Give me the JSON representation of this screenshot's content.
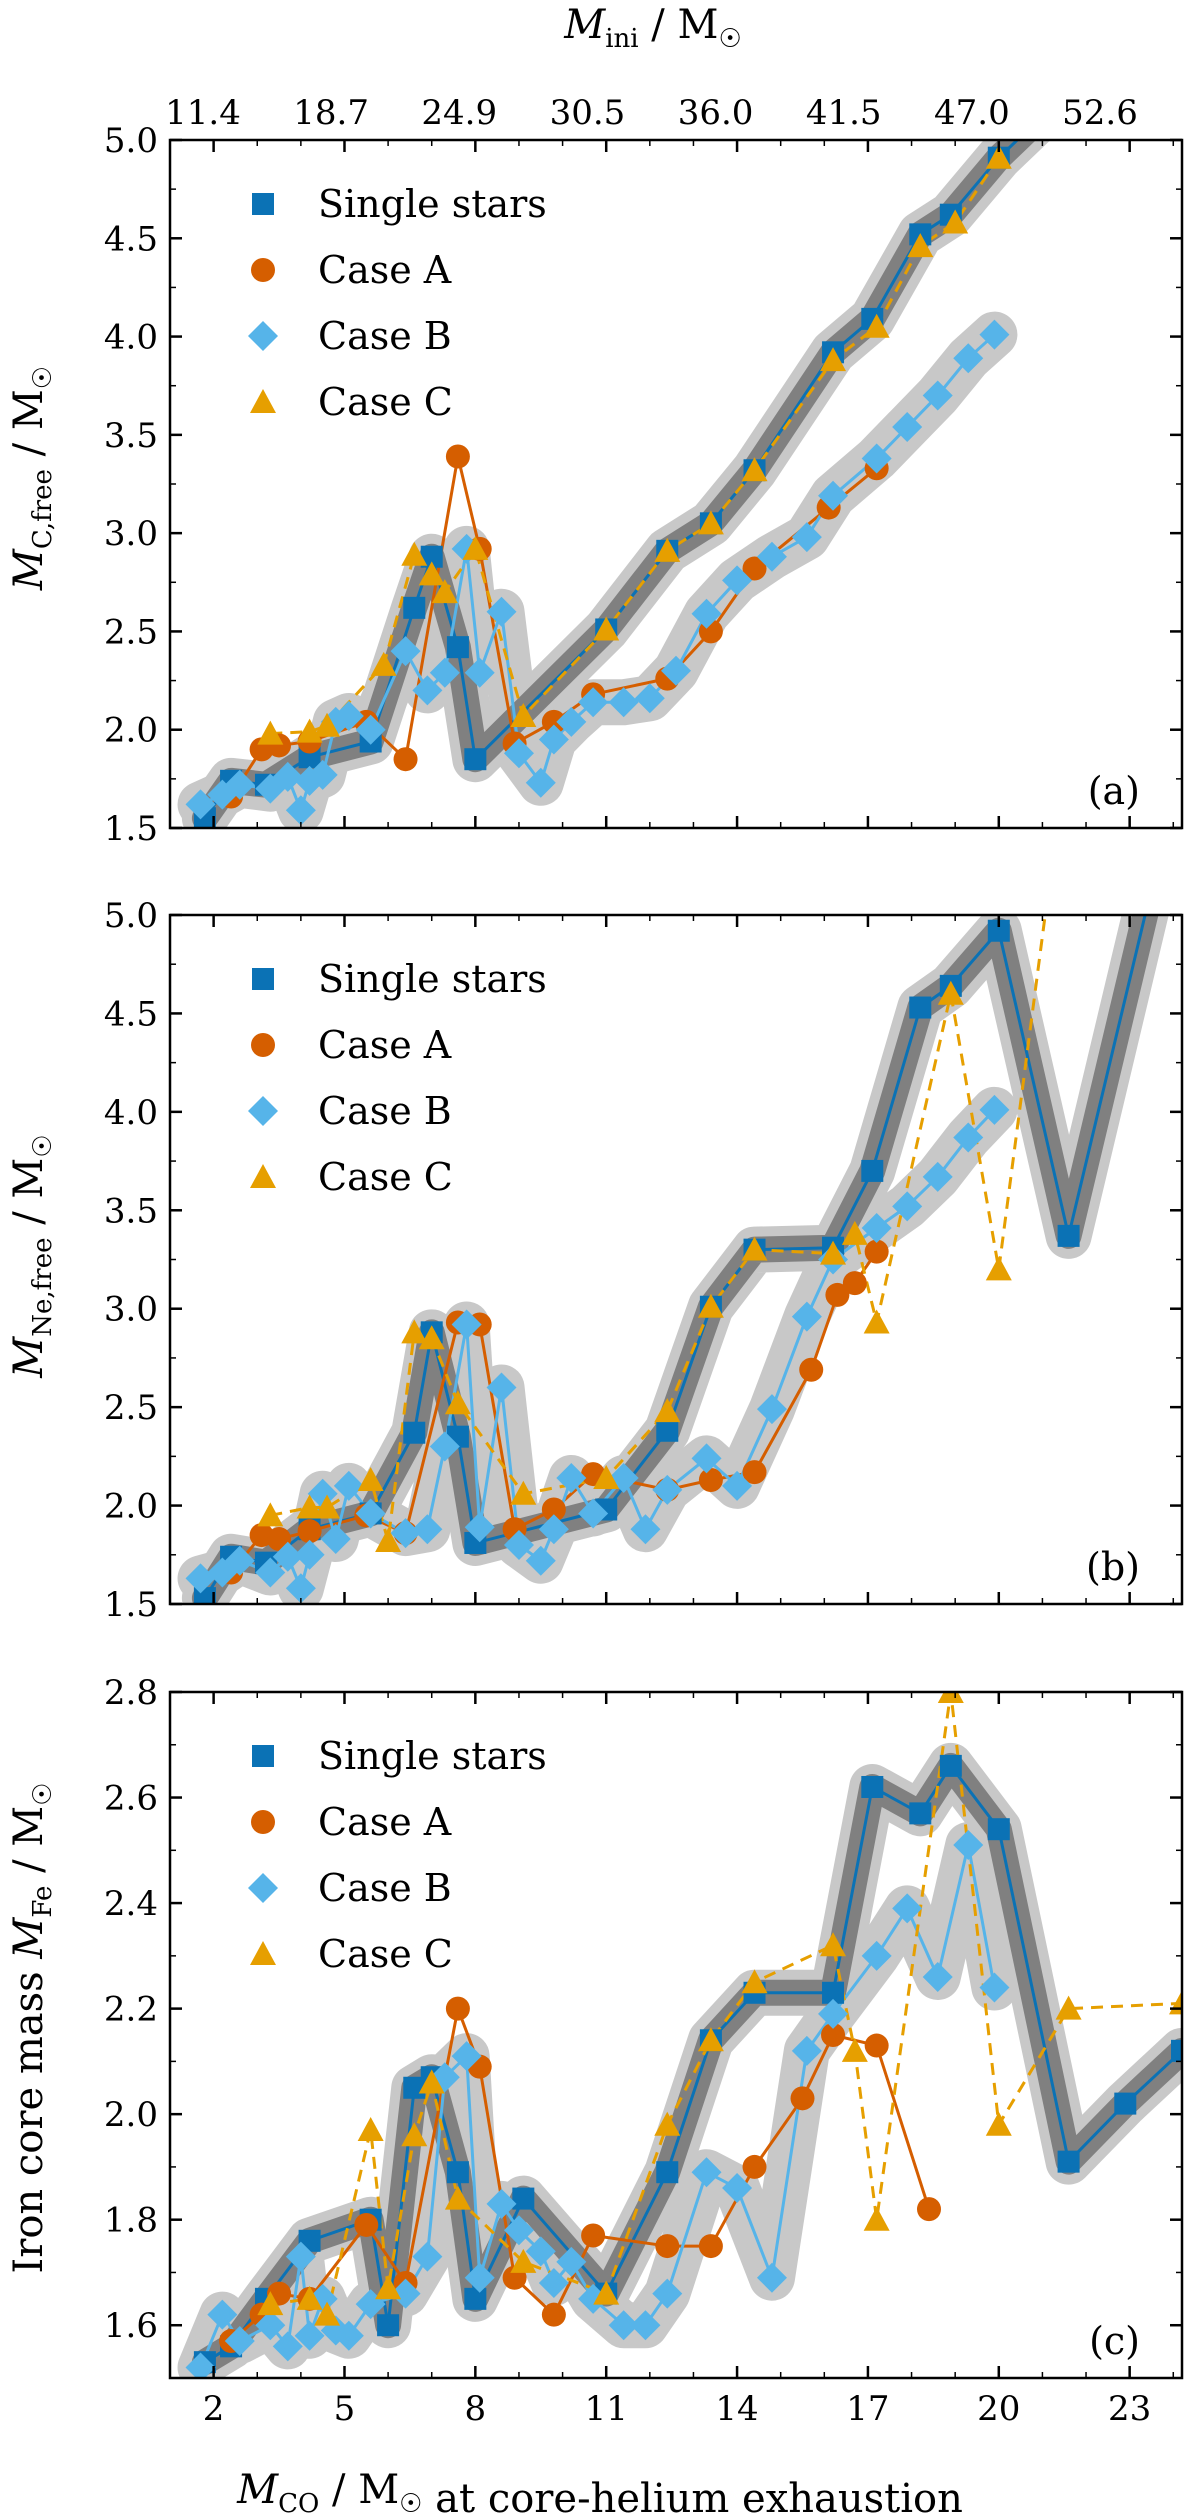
{
  "colors": {
    "single": "#0b72b5",
    "case_a": "#d55e00",
    "case_b": "#56b4e9",
    "case_c": "#e69f00",
    "band_light": "#c8c8c8",
    "band_dark": "#808080"
  },
  "legend_labels": [
    "Single stars",
    "Case A",
    "Case B",
    "Case C"
  ],
  "top_axis": {
    "label": "M_ini / M☉",
    "ticks": [
      "11.4",
      "18.7",
      "24.9",
      "30.5",
      "36.0",
      "41.5",
      "47.0",
      "52.6"
    ]
  },
  "bottom_axis_label": "M_CO / M☉ at core-helium exhaustion",
  "chart_data": [
    {
      "type": "line",
      "panel": "(a)",
      "ylabel": "M_C,free / M☉",
      "xlim": [
        1.0,
        24.2
      ],
      "ylim": [
        1.5,
        5.0
      ],
      "yticks": [
        "1.5",
        "2.0",
        "2.5",
        "3.0",
        "3.5",
        "4.0",
        "4.5",
        "5.0"
      ],
      "xticks": [
        "2",
        "5",
        "8",
        "11",
        "14",
        "17",
        "20",
        "23"
      ],
      "grid": false,
      "legend": "top-left",
      "series": [
        {
          "name": "Single stars",
          "marker": "square",
          "x": [
            1.8,
            2.4,
            3.2,
            4.2,
            5.6,
            6.6,
            7.0,
            7.6,
            8.0,
            11.0,
            12.4,
            13.4,
            14.4,
            16.2,
            17.1,
            18.2,
            18.9,
            20.0,
            21.6,
            24.0
          ],
          "y": [
            1.55,
            1.74,
            1.72,
            1.86,
            1.94,
            2.62,
            2.88,
            2.42,
            1.85,
            2.51,
            2.91,
            3.05,
            3.32,
            3.92,
            4.09,
            4.52,
            4.62,
            4.91,
            5.25,
            5.6
          ]
        },
        {
          "name": "Case A",
          "marker": "circle",
          "x": [
            2.4,
            3.1,
            3.5,
            4.2,
            5.5,
            6.4,
            7.6,
            8.1,
            8.9,
            9.8,
            10.7,
            12.4,
            13.4,
            14.4,
            16.1,
            17.2
          ],
          "y": [
            1.66,
            1.9,
            1.92,
            1.94,
            2.04,
            1.85,
            3.39,
            2.92,
            1.93,
            2.04,
            2.18,
            2.26,
            2.5,
            2.82,
            3.13,
            3.33
          ]
        },
        {
          "name": "Case B",
          "marker": "diamond",
          "x": [
            1.7,
            2.2,
            2.6,
            3.3,
            3.7,
            4.0,
            4.2,
            4.5,
            4.8,
            5.1,
            5.6,
            6.4,
            6.9,
            7.3,
            7.8,
            8.1,
            8.6,
            9.0,
            9.5,
            9.8,
            10.2,
            10.7,
            11.4,
            12.0,
            12.6,
            13.3,
            14.0,
            14.8,
            15.6,
            16.2,
            17.2,
            17.9,
            18.6,
            19.3,
            19.9
          ],
          "y": [
            1.62,
            1.67,
            1.72,
            1.7,
            1.76,
            1.59,
            1.74,
            1.77,
            2.04,
            2.07,
            2.0,
            2.4,
            2.2,
            2.29,
            2.92,
            2.29,
            2.6,
            1.88,
            1.73,
            1.95,
            2.04,
            2.14,
            2.14,
            2.16,
            2.3,
            2.59,
            2.76,
            2.88,
            2.98,
            3.19,
            3.38,
            3.54,
            3.7,
            3.89,
            4.01
          ]
        },
        {
          "name": "Case C",
          "marker": "triangle",
          "x": [
            3.3,
            4.2,
            4.6,
            5.9,
            6.6,
            7.0,
            7.3,
            8.0,
            9.1,
            11.0,
            12.4,
            13.4,
            14.4,
            16.2,
            17.2,
            18.2,
            19.0,
            20.0
          ],
          "y": [
            1.98,
            1.99,
            2.02,
            2.33,
            2.89,
            2.79,
            2.7,
            2.92,
            2.07,
            2.51,
            2.91,
            3.05,
            3.32,
            3.88,
            4.05,
            4.46,
            4.58,
            4.91
          ]
        }
      ]
    },
    {
      "type": "line",
      "panel": "(b)",
      "ylabel": "M_Ne,free / M☉",
      "xlim": [
        1.0,
        24.2
      ],
      "ylim": [
        1.5,
        5.0
      ],
      "yticks": [
        "1.5",
        "2.0",
        "2.5",
        "3.0",
        "3.5",
        "4.0",
        "4.5",
        "5.0"
      ],
      "xticks": [
        "2",
        "5",
        "8",
        "11",
        "14",
        "17",
        "20",
        "23"
      ],
      "grid": false,
      "legend": "top-left",
      "series": [
        {
          "name": "Single stars",
          "marker": "square",
          "x": [
            1.8,
            2.4,
            3.2,
            4.2,
            5.6,
            6.6,
            7.0,
            7.6,
            8.0,
            11.0,
            12.4,
            13.4,
            14.4,
            16.2,
            17.1,
            18.2,
            18.9,
            20.0,
            21.6,
            24.0
          ],
          "y": [
            1.53,
            1.74,
            1.71,
            1.88,
            1.96,
            2.37,
            2.88,
            2.35,
            1.81,
            1.98,
            2.38,
            3.01,
            3.3,
            3.31,
            3.7,
            4.53,
            4.64,
            4.92,
            3.37,
            5.6
          ]
        },
        {
          "name": "Case A",
          "marker": "circle",
          "x": [
            2.4,
            3.1,
            3.5,
            4.2,
            5.5,
            6.4,
            7.6,
            8.1,
            8.9,
            9.8,
            10.7,
            12.4,
            13.4,
            14.4,
            15.7,
            16.3,
            16.7,
            17.2
          ],
          "y": [
            1.66,
            1.85,
            1.83,
            1.87,
            1.95,
            1.86,
            2.93,
            2.92,
            1.88,
            1.98,
            2.16,
            2.08,
            2.13,
            2.17,
            2.69,
            3.07,
            3.13,
            3.29
          ]
        },
        {
          "name": "Case B",
          "marker": "diamond",
          "x": [
            1.7,
            2.2,
            2.6,
            3.3,
            3.7,
            4.0,
            4.2,
            4.5,
            4.8,
            5.1,
            5.6,
            6.4,
            6.9,
            7.3,
            7.8,
            8.1,
            8.6,
            9.0,
            9.5,
            9.8,
            10.2,
            10.7,
            11.4,
            11.9,
            12.4,
            13.3,
            14.0,
            14.8,
            15.6,
            16.2,
            17.2,
            17.9,
            18.6,
            19.3,
            19.9
          ],
          "y": [
            1.63,
            1.66,
            1.72,
            1.66,
            1.74,
            1.58,
            1.75,
            2.06,
            1.83,
            2.1,
            1.96,
            1.86,
            1.88,
            2.3,
            2.92,
            1.89,
            2.6,
            1.8,
            1.72,
            1.88,
            2.14,
            1.96,
            2.14,
            1.88,
            2.08,
            2.24,
            2.1,
            2.49,
            2.96,
            3.25,
            3.41,
            3.52,
            3.67,
            3.87,
            4.01
          ]
        },
        {
          "name": "Case C",
          "marker": "triangle",
          "x": [
            3.3,
            4.2,
            4.6,
            5.6,
            6.0,
            6.6,
            7.0,
            7.6,
            9.1,
            11.0,
            12.4,
            13.4,
            14.4,
            16.2,
            16.7,
            17.2,
            18.9,
            20.0,
            21.3
          ],
          "y": [
            1.95,
            1.99,
            1.99,
            2.13,
            1.82,
            2.88,
            2.85,
            2.52,
            2.06,
            2.14,
            2.48,
            3.01,
            3.3,
            3.28,
            3.38,
            2.93,
            4.6,
            3.2,
            5.4
          ]
        }
      ]
    },
    {
      "type": "line",
      "panel": "(c)",
      "ylabel": "Iron core mass M_Fe / M☉",
      "xlim": [
        1.0,
        24.2
      ],
      "ylim": [
        1.5,
        2.8
      ],
      "yticks": [
        "1.6",
        "1.8",
        "2.0",
        "2.2",
        "2.4",
        "2.6",
        "2.8"
      ],
      "xticks": [
        "2",
        "5",
        "8",
        "11",
        "14",
        "17",
        "20",
        "23"
      ],
      "grid": false,
      "legend": "top-left",
      "series": [
        {
          "name": "Single stars",
          "marker": "square",
          "x": [
            1.8,
            2.4,
            3.2,
            4.2,
            5.6,
            6.0,
            6.6,
            7.0,
            7.6,
            8.0,
            9.1,
            11.0,
            12.4,
            13.4,
            14.4,
            16.2,
            17.1,
            18.2,
            18.9,
            20.0,
            21.6,
            22.9,
            24.2
          ],
          "y": [
            1.53,
            1.56,
            1.65,
            1.76,
            1.8,
            1.6,
            2.05,
            2.07,
            1.89,
            1.65,
            1.84,
            1.66,
            1.89,
            2.14,
            2.23,
            2.23,
            2.62,
            2.57,
            2.66,
            2.54,
            1.91,
            2.02,
            2.12
          ]
        },
        {
          "name": "Case A",
          "marker": "circle",
          "x": [
            2.4,
            3.1,
            3.5,
            4.2,
            5.5,
            6.4,
            7.6,
            8.1,
            8.9,
            9.8,
            10.7,
            12.4,
            13.4,
            14.4,
            15.5,
            16.2,
            17.2,
            18.4
          ],
          "y": [
            1.57,
            1.62,
            1.66,
            1.65,
            1.79,
            1.68,
            2.2,
            2.09,
            1.69,
            1.62,
            1.77,
            1.75,
            1.75,
            1.9,
            2.03,
            2.15,
            2.13,
            1.82
          ]
        },
        {
          "name": "Case B",
          "marker": "diamond",
          "x": [
            1.7,
            2.2,
            2.6,
            3.3,
            3.7,
            4.0,
            4.2,
            4.5,
            4.8,
            5.1,
            5.6,
            6.4,
            6.9,
            7.3,
            7.8,
            8.1,
            8.6,
            9.0,
            9.5,
            9.8,
            10.2,
            10.7,
            11.4,
            11.9,
            12.4,
            13.3,
            14.0,
            14.8,
            15.6,
            16.2,
            17.2,
            17.9,
            18.6,
            19.3,
            19.9
          ],
          "y": [
            1.52,
            1.62,
            1.57,
            1.6,
            1.56,
            1.73,
            1.58,
            1.65,
            1.59,
            1.58,
            1.64,
            1.66,
            1.73,
            2.07,
            2.11,
            1.69,
            1.83,
            1.78,
            1.74,
            1.68,
            1.72,
            1.65,
            1.6,
            1.6,
            1.66,
            1.89,
            1.86,
            1.69,
            2.12,
            2.19,
            2.3,
            2.39,
            2.26,
            2.51,
            2.24
          ]
        },
        {
          "name": "Case C",
          "marker": "triangle",
          "x": [
            3.3,
            4.2,
            4.6,
            5.6,
            6.0,
            6.6,
            7.0,
            7.6,
            9.1,
            11.0,
            12.4,
            13.4,
            14.4,
            16.2,
            16.7,
            17.2,
            18.9,
            20.0,
            21.6,
            24.2
          ],
          "y": [
            1.64,
            1.65,
            1.62,
            1.97,
            1.67,
            1.96,
            2.06,
            1.84,
            1.72,
            1.66,
            1.98,
            2.14,
            2.25,
            2.32,
            2.12,
            1.8,
            2.8,
            1.98,
            2.2,
            2.21
          ]
        }
      ]
    }
  ]
}
